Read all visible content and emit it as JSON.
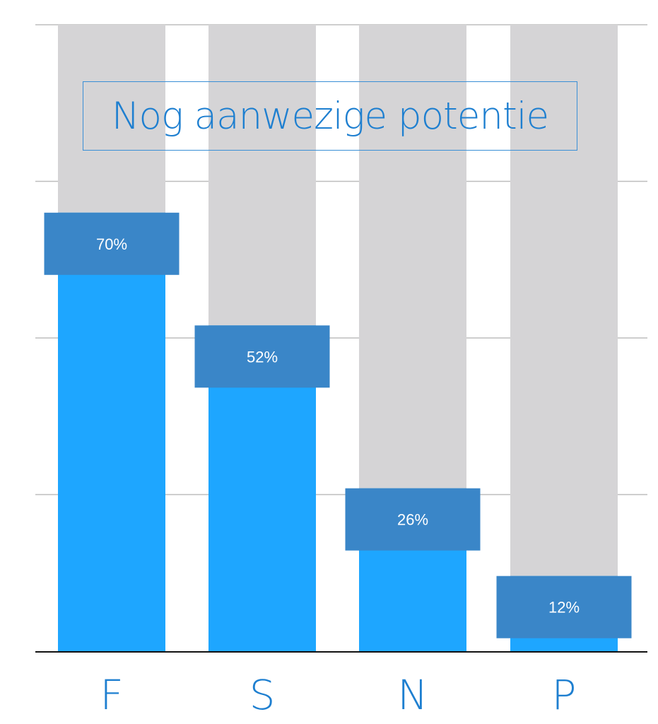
{
  "chart_data": {
    "type": "bar",
    "title": "Nog aanwezige potentie",
    "categories": [
      "F",
      "S",
      "N",
      "P"
    ],
    "series": [
      {
        "values": [
          70,
          52,
          26,
          12
        ]
      }
    ],
    "data_labels": [
      "70%",
      "52%",
      "26%",
      "12%"
    ],
    "ylim": [
      0,
      100
    ],
    "background_bar_value": 100,
    "grid": true,
    "colors": {
      "bar_fill": "#1ea6ff",
      "background_bar": "#d5d4d6",
      "label_box": "#3a86c8",
      "label_text": "#ffffff",
      "category_text": "#1e7fd0",
      "title_text": "#1e7fd0",
      "gridline": "#bdbdbd",
      "axis_line": "#111111"
    }
  }
}
